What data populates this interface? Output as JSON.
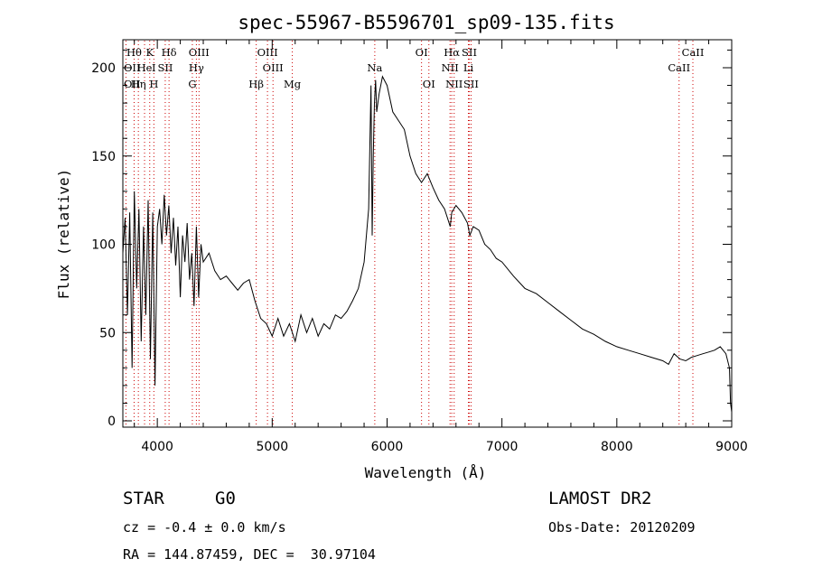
{
  "chart_data": {
    "type": "line",
    "title": "spec-55967-B5596701_sp09-135.fits",
    "xlabel": "Wavelength (Å)",
    "ylabel": "Flux (relative)",
    "xlim": [
      3700,
      9000
    ],
    "ylim": [
      0,
      210
    ],
    "xticks": [
      4000,
      5000,
      6000,
      7000,
      8000,
      9000
    ],
    "yticks": [
      0,
      50,
      100,
      150,
      200
    ],
    "grid": false,
    "series": [
      {
        "values_description_free": true,
        "x": [
          3700,
          3720,
          3740,
          3760,
          3780,
          3800,
          3820,
          3840,
          3860,
          3880,
          3900,
          3920,
          3940,
          3960,
          3980,
          4000,
          4020,
          4040,
          4060,
          4080,
          4100,
          4120,
          4140,
          4160,
          4180,
          4200,
          4220,
          4240,
          4260,
          4280,
          4300,
          4320,
          4340,
          4360,
          4380,
          4400,
          4450,
          4500,
          4550,
          4600,
          4650,
          4700,
          4750,
          4800,
          4850,
          4900,
          4950,
          5000,
          5050,
          5100,
          5150,
          5200,
          5250,
          5300,
          5350,
          5400,
          5450,
          5500,
          5550,
          5600,
          5650,
          5700,
          5750,
          5800,
          5840,
          5860,
          5870,
          5880,
          5890,
          5900,
          5910,
          5930,
          5960,
          6000,
          6050,
          6100,
          6150,
          6200,
          6250,
          6300,
          6350,
          6400,
          6450,
          6500,
          6550,
          6563,
          6600,
          6650,
          6700,
          6720,
          6750,
          6800,
          6850,
          6900,
          6950,
          7000,
          7100,
          7200,
          7300,
          7400,
          7500,
          7600,
          7700,
          7800,
          7900,
          8000,
          8100,
          8200,
          8300,
          8400,
          8450,
          8498,
          8550,
          8600,
          8650,
          8700,
          8750,
          8800,
          8850,
          8900,
          8950,
          8980,
          8990,
          9000
        ],
        "y": [
          95,
          115,
          60,
          118,
          30,
          130,
          75,
          120,
          45,
          110,
          60,
          125,
          35,
          118,
          20,
          110,
          120,
          100,
          128,
          105,
          122,
          95,
          115,
          88,
          110,
          70,
          105,
          90,
          112,
          80,
          95,
          65,
          110,
          70,
          100,
          90,
          95,
          85,
          80,
          82,
          78,
          74,
          78,
          80,
          68,
          58,
          55,
          48,
          58,
          48,
          55,
          45,
          60,
          50,
          58,
          48,
          55,
          52,
          60,
          58,
          62,
          68,
          75,
          90,
          120,
          190,
          105,
          150,
          180,
          193,
          175,
          185,
          195,
          190,
          175,
          170,
          165,
          150,
          140,
          135,
          140,
          132,
          125,
          120,
          110,
          118,
          122,
          118,
          112,
          105,
          110,
          108,
          100,
          97,
          92,
          90,
          82,
          75,
          72,
          67,
          62,
          57,
          52,
          49,
          45,
          42,
          40,
          38,
          36,
          34,
          32,
          38,
          35,
          34,
          36,
          37,
          38,
          39,
          40,
          42,
          38,
          30,
          10,
          5
        ]
      }
    ],
    "spectral_lines": [
      {
        "label": "Hθ",
        "wavelength": 3798,
        "row": 0,
        "anchor": "middle"
      },
      {
        "label": "K",
        "wavelength": 3934,
        "row": 0,
        "anchor": "middle"
      },
      {
        "label": "Hδ",
        "wavelength": 4102,
        "row": 0,
        "anchor": "middle"
      },
      {
        "label": "OIII",
        "wavelength": 4363,
        "row": 0,
        "anchor": "middle"
      },
      {
        "label": "OIII",
        "wavelength": 4959,
        "row": 0,
        "anchor": "middle"
      },
      {
        "label": "OI",
        "wavelength": 6300,
        "row": 0,
        "anchor": "middle"
      },
      {
        "label": "Hα",
        "wavelength": 6563,
        "row": 0,
        "anchor": "middle"
      },
      {
        "label": "SII",
        "wavelength": 6716,
        "row": 0,
        "anchor": "middle"
      },
      {
        "label": "CaII",
        "wavelength": 8662,
        "row": 0,
        "anchor": "middle"
      },
      {
        "label": "OII",
        "wavelength": 3727,
        "row": 1,
        "anchor": "start"
      },
      {
        "label": "He",
        "wavelength": 3889,
        "row": 1,
        "anchor": "middle"
      },
      {
        "label": "I",
        "wavelength": 3970,
        "row": 1,
        "anchor": "middle"
      },
      {
        "label": "SII",
        "wavelength": 4069,
        "row": 1,
        "anchor": "middle"
      },
      {
        "label": "Hγ",
        "wavelength": 4340,
        "row": 1,
        "anchor": "middle"
      },
      {
        "label": "OIII",
        "wavelength": 5007,
        "row": 1,
        "anchor": "middle"
      },
      {
        "label": "Na",
        "wavelength": 5893,
        "row": 1,
        "anchor": "middle"
      },
      {
        "label": "NII",
        "wavelength": 6548,
        "row": 1,
        "anchor": "middle"
      },
      {
        "label": "Li",
        "wavelength": 6708,
        "row": 1,
        "anchor": "middle"
      },
      {
        "label": "CaII",
        "wavelength": 8542,
        "row": 1,
        "anchor": "middle"
      },
      {
        "label": "OII",
        "wavelength": 3727,
        "row": 2,
        "anchor": "start"
      },
      {
        "label": "Hη",
        "wavelength": 3835,
        "row": 2,
        "anchor": "middle"
      },
      {
        "label": "H",
        "wavelength": 3970,
        "row": 2,
        "anchor": "middle"
      },
      {
        "label": "G",
        "wavelength": 4305,
        "row": 2,
        "anchor": "middle"
      },
      {
        "label": "Hβ",
        "wavelength": 4861,
        "row": 2,
        "anchor": "middle"
      },
      {
        "label": "Mg",
        "wavelength": 5175,
        "row": 2,
        "anchor": "middle"
      },
      {
        "label": "OI",
        "wavelength": 6364,
        "row": 2,
        "anchor": "middle"
      },
      {
        "label": "NII",
        "wavelength": 6584,
        "row": 2,
        "anchor": "middle"
      },
      {
        "label": "SII",
        "wavelength": 6731,
        "row": 2,
        "anchor": "middle"
      }
    ],
    "colors": {
      "spectrum": "#000000",
      "line_marker": "#cc0000",
      "axes": "#000000"
    }
  },
  "info": {
    "class_label": "STAR",
    "subclass": "G0",
    "survey": "LAMOST DR2",
    "redshift": "cz = -0.4 ± 0.0 km/s",
    "obs_date": "Obs-Date: 20120209",
    "coords": "RA = 144.87459, DEC =  30.97104"
  }
}
